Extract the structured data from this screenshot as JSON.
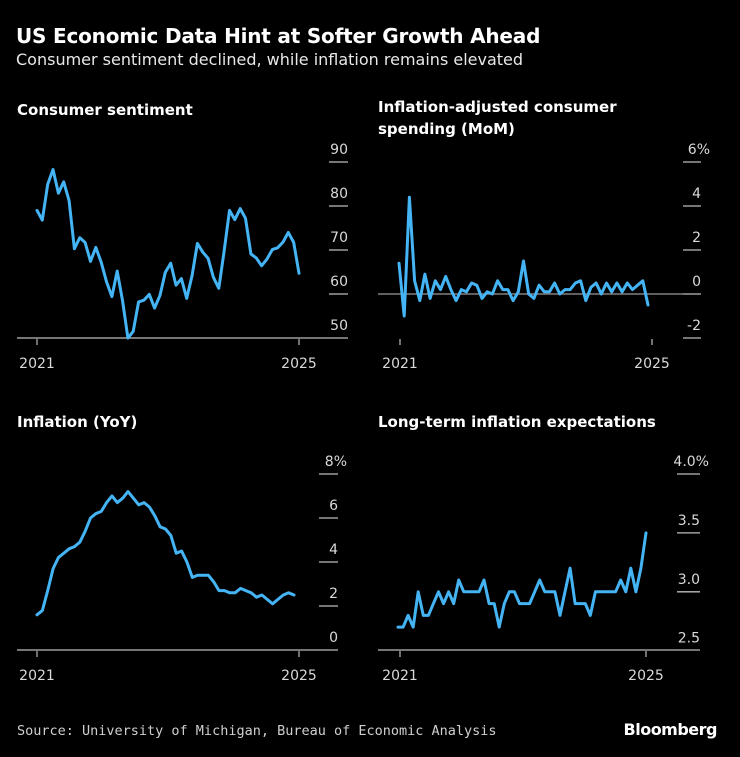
{
  "header": {
    "title": "US Economic Data Hint at Softer Growth Ahead",
    "subtitle": "Consumer sentiment declined, while inflation remains elevated"
  },
  "footer": {
    "source": "Source: University of Michigan, Bureau of Economic Analysis",
    "logo": "Bloomberg"
  },
  "colors": {
    "background": "#000000",
    "line": "#44b4f5",
    "text": "#ffffff",
    "axis": "#bdbdbd"
  },
  "chart_data": [
    {
      "type": "line",
      "title": "Consumer sentiment",
      "x_start": "2021-01",
      "x_end": "2025-02",
      "frequency": "monthly",
      "xticks": [
        "2021",
        "2025"
      ],
      "yticks": [
        "90",
        "80",
        "70",
        "60",
        "50"
      ],
      "ylim": [
        50,
        90
      ],
      "values": [
        79.0,
        76.8,
        84.9,
        88.3,
        82.9,
        85.5,
        81.2,
        70.3,
        72.8,
        71.7,
        67.4,
        70.6,
        67.2,
        62.8,
        59.4,
        65.2,
        58.4,
        50.0,
        51.5,
        58.2,
        58.6,
        59.9,
        56.8,
        59.7,
        64.9,
        67.0,
        62.0,
        63.5,
        59.0,
        64.2,
        71.5,
        69.5,
        68.1,
        63.8,
        61.3,
        69.7,
        79.0,
        76.9,
        79.4,
        77.2,
        69.1,
        68.2,
        66.4,
        67.9,
        70.1,
        70.5,
        71.8,
        74.0,
        71.7,
        64.7
      ]
    },
    {
      "type": "line",
      "title": "Inflation-adjusted consumer spending (MoM)",
      "x_start": "2021-01",
      "x_end": "2025-01",
      "frequency": "monthly",
      "xticks": [
        "2021",
        "2025"
      ],
      "yticks": [
        "6%",
        "4",
        "2",
        "0",
        "-2"
      ],
      "ylim": [
        -2,
        6
      ],
      "values": [
        1.4,
        -1.0,
        4.4,
        0.6,
        -0.3,
        0.9,
        -0.2,
        0.6,
        0.2,
        0.8,
        0.2,
        -0.3,
        0.2,
        0.1,
        0.5,
        0.4,
        -0.2,
        0.1,
        0.0,
        0.6,
        0.2,
        0.2,
        -0.3,
        0.1,
        1.5,
        0.0,
        -0.2,
        0.4,
        0.1,
        0.1,
        0.5,
        0.0,
        0.2,
        0.2,
        0.5,
        0.6,
        -0.3,
        0.3,
        0.5,
        0.0,
        0.5,
        0.1,
        0.5,
        0.1,
        0.5,
        0.2,
        0.4,
        0.6,
        -0.5
      ]
    },
    {
      "type": "line",
      "title": "Inflation (YoY)",
      "x_start": "2021-01",
      "x_end": "2025-01",
      "frequency": "monthly",
      "xticks": [
        "2021",
        "2025"
      ],
      "yticks": [
        "8%",
        "6",
        "4",
        "2",
        "0"
      ],
      "ylim": [
        0,
        8
      ],
      "values": [
        1.6,
        1.8,
        2.7,
        3.7,
        4.2,
        4.4,
        4.6,
        4.7,
        4.9,
        5.4,
        6.0,
        6.2,
        6.3,
        6.7,
        7.0,
        6.7,
        6.9,
        7.2,
        6.9,
        6.6,
        6.7,
        6.5,
        6.1,
        5.6,
        5.5,
        5.2,
        4.4,
        4.5,
        4.0,
        3.3,
        3.4,
        3.4,
        3.4,
        3.1,
        2.7,
        2.7,
        2.6,
        2.6,
        2.8,
        2.7,
        2.6,
        2.4,
        2.5,
        2.3,
        2.1,
        2.3,
        2.5,
        2.6,
        2.5
      ]
    },
    {
      "type": "line",
      "title": "Long-term inflation expectations",
      "x_start": "2021-01",
      "x_end": "2025-02",
      "frequency": "monthly",
      "xticks": [
        "2021",
        "2025"
      ],
      "yticks": [
        "4.0%",
        "3.5",
        "3.0",
        "2.5"
      ],
      "ylim": [
        2.5,
        4.0
      ],
      "values": [
        2.7,
        2.7,
        2.8,
        2.7,
        3.0,
        2.8,
        2.8,
        2.9,
        3.0,
        2.9,
        3.0,
        2.9,
        3.1,
        3.0,
        3.0,
        3.0,
        3.0,
        3.1,
        2.9,
        2.9,
        2.7,
        2.9,
        3.0,
        3.0,
        2.9,
        2.9,
        2.9,
        3.0,
        3.1,
        3.0,
        3.0,
        3.0,
        2.8,
        3.0,
        3.2,
        2.9,
        2.9,
        2.9,
        2.8,
        3.0,
        3.0,
        3.0,
        3.0,
        3.0,
        3.1,
        3.0,
        3.2,
        3.0,
        3.2,
        3.5
      ]
    }
  ]
}
